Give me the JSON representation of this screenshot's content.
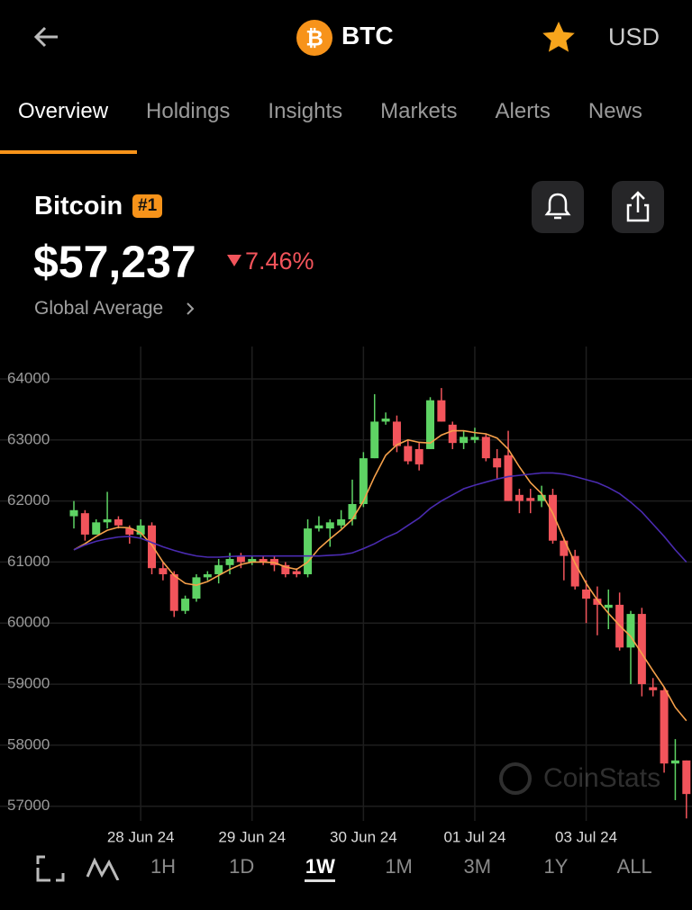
{
  "header": {
    "title": "BTC",
    "currency": "USD"
  },
  "tabs": [
    "Overview",
    "Holdings",
    "Insights",
    "Markets",
    "Alerts",
    "News"
  ],
  "active_tab": 0,
  "coin": {
    "name": "Bitcoin",
    "rank": "#1",
    "price": "$57,237",
    "change": "7.46%",
    "source": "Global Average"
  },
  "chart_data": {
    "type": "candlestick",
    "categories": [
      null,
      null,
      null,
      null,
      null,
      null,
      "28 Jun 24",
      null,
      null,
      null,
      null,
      null,
      null,
      null,
      null,
      null,
      "29 Jun 24",
      null,
      null,
      null,
      null,
      null,
      null,
      null,
      null,
      null,
      "30 Jun 24",
      null,
      null,
      null,
      null,
      null,
      null,
      null,
      null,
      null,
      "01 Jul 24",
      null,
      null,
      null,
      null,
      null,
      null,
      null,
      null,
      null,
      "03 Jul 24",
      null,
      null,
      null,
      null,
      null,
      null,
      null,
      null,
      null
    ],
    "open": [
      61750,
      61800,
      61450,
      61650,
      61700,
      61550,
      61450,
      61600,
      60900,
      60800,
      60200,
      60400,
      60750,
      60800,
      60950,
      61100,
      61000,
      61050,
      61050,
      60950,
      60850,
      60800,
      61550,
      61550,
      61600,
      61700,
      61950,
      62700,
      63300,
      63300,
      62900,
      62850,
      62850,
      63650,
      63250,
      62950,
      63000,
      63050,
      62700,
      62750,
      62100,
      62050,
      62000,
      62100,
      61350,
      61100,
      60550,
      60400,
      60250,
      60300,
      59600,
      60150,
      58950,
      58900,
      57700,
      57750
    ],
    "high": [
      62000,
      61850,
      61700,
      62150,
      61750,
      61600,
      61700,
      61650,
      61000,
      60850,
      60450,
      60800,
      60850,
      61050,
      61150,
      61150,
      61100,
      61100,
      61100,
      61000,
      60900,
      61700,
      61750,
      61700,
      61850,
      62350,
      62800,
      63750,
      63450,
      63400,
      63000,
      62950,
      63700,
      63850,
      63300,
      63150,
      63200,
      63100,
      62850,
      63150,
      62200,
      62200,
      62250,
      62200,
      61400,
      61200,
      60700,
      60600,
      60550,
      60500,
      60200,
      60250,
      59100,
      58950,
      58100,
      57750
    ],
    "low": [
      61550,
      61350,
      61450,
      61550,
      61550,
      61300,
      61400,
      60800,
      60700,
      60100,
      60150,
      60350,
      60700,
      60650,
      60800,
      60900,
      60950,
      60950,
      60850,
      60750,
      60750,
      60750,
      61500,
      61250,
      61550,
      61600,
      61900,
      62700,
      63250,
      62800,
      62600,
      62500,
      62850,
      63300,
      62850,
      62850,
      62950,
      62650,
      62350,
      62000,
      61800,
      61800,
      61900,
      61300,
      60700,
      60550,
      60000,
      59800,
      59900,
      59550,
      59000,
      58800,
      58800,
      57550,
      57100,
      56800
    ],
    "close": [
      61850,
      61450,
      61650,
      61700,
      61600,
      61450,
      61600,
      60900,
      60800,
      60200,
      60400,
      60750,
      60800,
      60950,
      61050,
      61000,
      61050,
      61000,
      60950,
      60800,
      60800,
      61550,
      61600,
      61650,
      61700,
      61950,
      62700,
      63300,
      63350,
      62900,
      62650,
      62600,
      63650,
      63300,
      62950,
      63050,
      63050,
      62700,
      62550,
      62000,
      62000,
      62000,
      62100,
      61350,
      61100,
      60600,
      60400,
      60300,
      60300,
      59600,
      60150,
      59000,
      58900,
      57700,
      57750,
      57200
    ],
    "up_color": "#5ed364",
    "down_color": "#f2545b",
    "lines": [
      {
        "color": "#f5a04a",
        "values": [
          61200,
          61300,
          61420,
          61520,
          61570,
          61560,
          61480,
          61280,
          61000,
          60780,
          60650,
          60620,
          60680,
          60780,
          60880,
          60960,
          61000,
          61000,
          60990,
          60920,
          60880,
          61000,
          61220,
          61380,
          61530,
          61700,
          62000,
          62400,
          62750,
          62920,
          63000,
          62960,
          62950,
          63080,
          63150,
          63150,
          63120,
          63100,
          63030,
          62850,
          62560,
          62300,
          62120,
          61800,
          61380,
          60980,
          60650,
          60380,
          60160,
          59960,
          59780,
          59500,
          59220,
          58950,
          58620,
          58400
        ]
      },
      {
        "color": "#4a2bb0",
        "values": [
          61200,
          61280,
          61340,
          61380,
          61410,
          61420,
          61390,
          61320,
          61250,
          61190,
          61140,
          61100,
          61080,
          61080,
          61090,
          61100,
          61100,
          61100,
          61100,
          61100,
          61100,
          61100,
          61100,
          61110,
          61120,
          61150,
          61220,
          61300,
          61400,
          61480,
          61600,
          61720,
          61880,
          62000,
          62100,
          62200,
          62260,
          62310,
          62360,
          62400,
          62420,
          62440,
          62460,
          62460,
          62440,
          62400,
          62350,
          62300,
          62220,
          62120,
          61980,
          61820,
          61620,
          61420,
          61200,
          61000
        ]
      }
    ],
    "ylim": [
      56760,
      64530
    ],
    "yticks": [
      57000,
      58000,
      59000,
      60000,
      61000,
      62000,
      63000,
      64000
    ],
    "grid": true,
    "watermark": "CoinStats"
  },
  "timeframes": [
    "1H",
    "1D",
    "1W",
    "1M",
    "3M",
    "1Y",
    "ALL"
  ],
  "selected_timeframe": 2
}
